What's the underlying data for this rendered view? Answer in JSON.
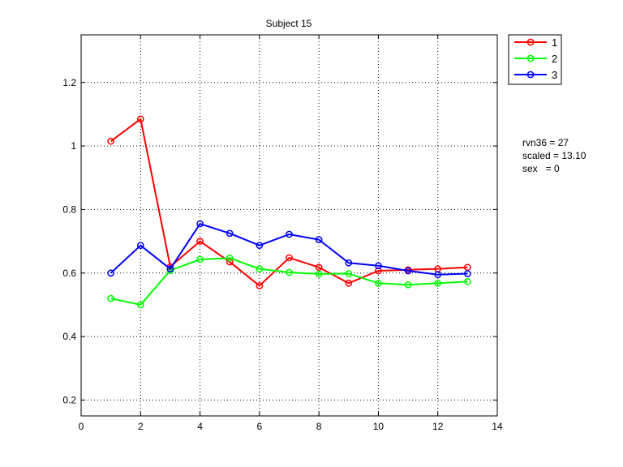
{
  "chart_data": {
    "type": "line",
    "title": "Subject 15",
    "xlabel": "",
    "ylabel": "",
    "xlim": [
      0,
      14
    ],
    "ylim": [
      0.15,
      1.35
    ],
    "xticks": [
      0,
      2,
      4,
      6,
      8,
      10,
      12,
      14
    ],
    "xtick_labels": [
      "0",
      "2",
      "4",
      "6",
      "8",
      "10",
      "12",
      "14"
    ],
    "yticks": [
      0.2,
      0.4,
      0.6,
      0.8,
      1,
      1.2
    ],
    "ytick_labels": [
      "0.2",
      "0.4",
      "0.6",
      "0.8",
      "1",
      "1.2"
    ],
    "grid": true,
    "legend_position": "outside-top-right",
    "x": [
      1,
      2,
      3,
      4,
      5,
      6,
      7,
      8,
      9,
      10,
      11,
      12,
      13
    ],
    "series": [
      {
        "name": "1",
        "color": "#ff0000",
        "values": [
          1.015,
          1.085,
          0.62,
          0.7,
          0.635,
          0.56,
          0.648,
          0.618,
          0.568,
          0.607,
          0.61,
          0.613,
          0.618
        ]
      },
      {
        "name": "2",
        "color": "#00ff00",
        "values": [
          0.52,
          0.5,
          0.608,
          0.643,
          0.647,
          0.613,
          0.602,
          0.597,
          0.598,
          0.568,
          0.563,
          0.568,
          0.573
        ]
      },
      {
        "name": "3",
        "color": "#0000ff",
        "values": [
          0.6,
          0.687,
          0.613,
          0.755,
          0.725,
          0.687,
          0.722,
          0.705,
          0.632,
          0.623,
          0.607,
          0.595,
          0.598
        ]
      }
    ],
    "annotations": [
      "rvn36 = 27",
      "scaled = 13.10",
      "sex   = 0"
    ]
  }
}
